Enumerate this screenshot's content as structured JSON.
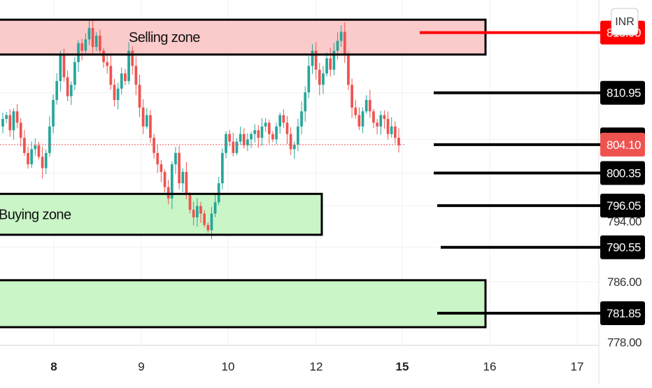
{
  "currency_button": {
    "label": "INR"
  },
  "colors": {
    "up": "#26a69a",
    "down": "#ef5350",
    "trendline": "#1a1aa6",
    "selling_zone_fill": "#fbcaca",
    "buying_zone_fill": "#c9f5c7",
    "resistance": "#ff0000",
    "level": "#000000",
    "last_price": "#ef5350"
  },
  "chart_data": {
    "type": "candlestick",
    "price_axis": {
      "ticks": [
        "818.90",
        "810.95",
        "804.80",
        "800.35",
        "796.05",
        "794.00",
        "790.55",
        "786.00",
        "781.85",
        "778.00"
      ],
      "visible_range": [
        777.6,
        823.2
      ]
    },
    "time_axis": {
      "ticks": [
        "8",
        "9",
        "10",
        "12",
        "15",
        "16",
        "17"
      ],
      "bold_ticks": [
        "8",
        "15"
      ]
    },
    "zones": [
      {
        "label": "Selling zone",
        "low": 816.0,
        "high": 820.6,
        "kind": "sell"
      },
      {
        "label": "Buying zone",
        "low": 792.2,
        "high": 797.6,
        "kind": "buy"
      },
      {
        "label": "",
        "low": 780.0,
        "high": 786.2,
        "kind": "buy"
      }
    ],
    "levels": [
      {
        "label": "818.90",
        "price": 818.9,
        "style": "resistance"
      },
      {
        "label": "810.95",
        "price": 810.95,
        "style": "level"
      },
      {
        "label": "804.80",
        "price": 804.8,
        "style": "level"
      },
      {
        "label": "804.10",
        "price": 804.1,
        "style": "last"
      },
      {
        "label": "800.35",
        "price": 800.35,
        "style": "level"
      },
      {
        "label": "796.05",
        "price": 796.05,
        "style": "level"
      },
      {
        "label": "790.55",
        "price": 790.55,
        "style": "level"
      },
      {
        "label": "781.85",
        "price": 781.85,
        "style": "level"
      }
    ],
    "trendline": {
      "from_price": 824.5,
      "to_price": 833.0
    },
    "last_price": 804.1,
    "close_path": [
      807.5,
      808.0,
      806.0,
      808.5,
      807.0,
      805.0,
      803.0,
      801.5,
      803.5,
      804.0,
      802.5,
      801.0,
      803.0,
      806.5,
      810.0,
      812.5,
      816.0,
      813.0,
      810.5,
      812.0,
      815.0,
      817.5,
      816.5,
      818.0,
      819.5,
      817.0,
      818.5,
      816.5,
      815.0,
      814.5,
      812.0,
      810.0,
      811.5,
      813.5,
      812.5,
      816.5,
      814.5,
      812.0,
      809.0,
      806.5,
      808.0,
      805.0,
      803.0,
      801.5,
      800.5,
      798.5,
      797.0,
      801.5,
      803.0,
      799.0,
      800.5,
      797.5,
      795.5,
      794.5,
      796.0,
      795.0,
      793.5,
      792.8,
      795.0,
      796.5,
      799.0,
      803.0,
      805.5,
      804.5,
      803.0,
      804.5,
      805.5,
      804.0,
      804.8,
      805.5,
      806.0,
      805.0,
      806.5,
      807.0,
      805.5,
      804.8,
      806.5,
      808.0,
      807.0,
      805.5,
      803.5,
      804.1,
      806.5,
      808.5,
      811.0,
      814.5,
      816.5,
      814.0,
      812.0,
      813.5,
      815.5,
      814.0,
      816.5,
      817.8,
      819.0,
      816.0,
      812.0,
      809.0,
      808.0,
      806.5,
      808.5,
      810.0,
      808.5,
      807.0,
      806.5,
      808.0,
      807.5,
      805.5,
      806.5,
      805.0,
      804.0
    ]
  }
}
